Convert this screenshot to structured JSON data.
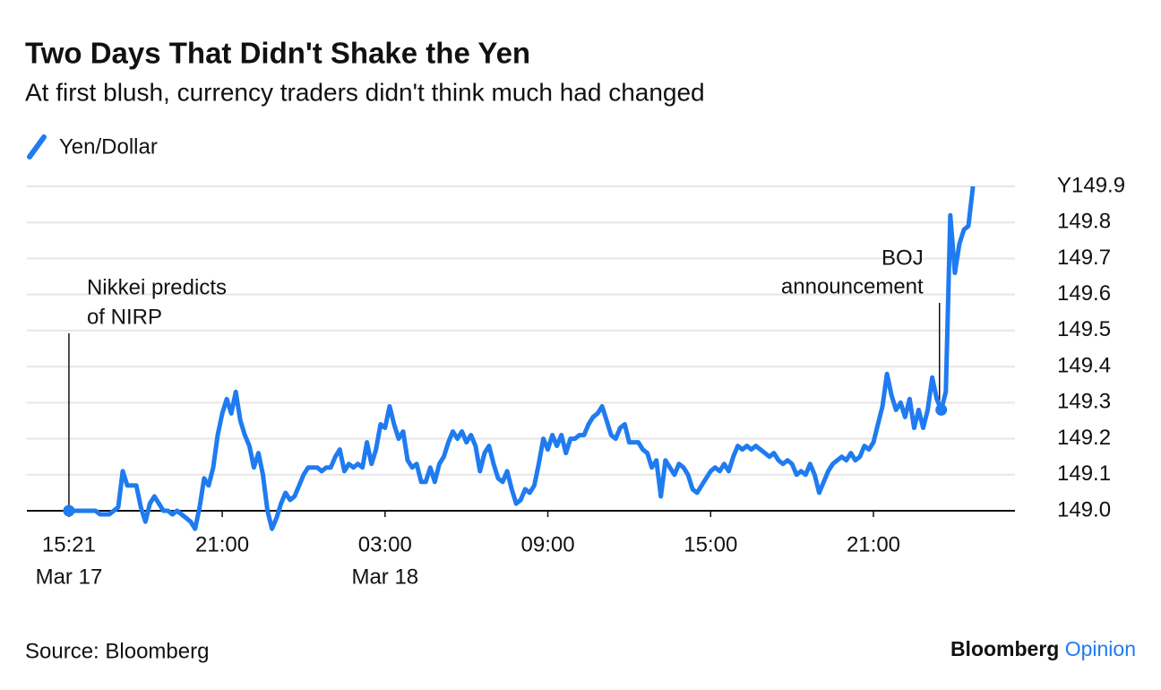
{
  "chart_data": {
    "type": "line",
    "title": "Two Days That Didn't Shake the Yen",
    "subtitle": "At first blush, currency traders didn't think much had changed",
    "source": "Source: Bloomberg",
    "brand": [
      "Bloomberg",
      "Opinion"
    ],
    "x": [
      "15:21",
      "15:30",
      "15:40",
      "15:50",
      "16:00",
      "16:10",
      "16:20",
      "16:30",
      "16:40",
      "16:50",
      "17:00",
      "17:10",
      "17:20",
      "17:30",
      "17:40",
      "17:50",
      "18:00",
      "18:10",
      "18:20",
      "18:30",
      "18:40",
      "18:50",
      "19:00",
      "19:10",
      "19:20",
      "19:30",
      "19:40",
      "19:50",
      "20:00",
      "20:10",
      "20:20",
      "20:30",
      "20:40",
      "20:50",
      "21:00",
      "21:10",
      "21:20",
      "21:30",
      "21:40",
      "21:50",
      "22:00",
      "22:10",
      "22:20",
      "22:30",
      "22:40",
      "22:50",
      "23:00",
      "23:10",
      "23:20",
      "23:30",
      "23:40",
      "23:50",
      "00:00",
      "00:10",
      "00:20",
      "00:30",
      "00:40",
      "00:50",
      "01:00",
      "01:10",
      "01:20",
      "01:30",
      "01:40",
      "01:50",
      "02:00",
      "02:10",
      "02:20",
      "02:30",
      "02:40",
      "02:50",
      "03:00",
      "03:10",
      "03:20",
      "03:30",
      "03:40",
      "03:50",
      "04:00",
      "04:10",
      "04:20",
      "04:30",
      "04:40",
      "04:50",
      "05:00",
      "05:10",
      "05:20",
      "05:30",
      "05:40",
      "05:50",
      "06:00",
      "06:10",
      "06:20",
      "06:30",
      "06:40",
      "06:50",
      "07:00",
      "07:10",
      "07:20",
      "07:30",
      "07:40",
      "07:50",
      "08:00",
      "08:10",
      "08:20",
      "08:30",
      "08:40",
      "08:50",
      "09:00",
      "09:10",
      "09:20",
      "09:30",
      "09:40",
      "09:50",
      "10:00",
      "10:10",
      "10:20",
      "10:30",
      "10:40",
      "10:50",
      "11:00",
      "11:10",
      "11:20",
      "11:30",
      "11:40",
      "11:50",
      "12:00",
      "12:10",
      "12:20",
      "12:30",
      "12:40",
      "12:50",
      "13:00",
      "13:10",
      "13:20",
      "13:30",
      "13:40",
      "13:50",
      "14:00",
      "14:10",
      "14:20",
      "14:30",
      "14:40",
      "14:50",
      "15:00",
      "15:10",
      "15:20",
      "15:30",
      "15:40",
      "15:50",
      "16:00",
      "16:10",
      "16:20",
      "16:30",
      "16:40",
      "16:50",
      "17:00",
      "17:10",
      "17:20",
      "17:30",
      "17:40",
      "17:50",
      "18:00",
      "18:10",
      "18:20",
      "18:30",
      "18:40",
      "18:50",
      "19:00",
      "19:10",
      "19:20",
      "19:30",
      "19:40",
      "19:50",
      "20:00",
      "20:10",
      "20:20",
      "20:30",
      "20:40",
      "20:50",
      "21:00",
      "21:10",
      "21:20",
      "21:30",
      "21:40",
      "21:50",
      "22:00",
      "22:10",
      "22:20",
      "22:30",
      "22:40",
      "22:50",
      "23:00",
      "23:10",
      "23:20",
      "23:30",
      "23:40",
      "23:50",
      "00:00",
      "00:10",
      "00:20",
      "00:30",
      "00:40"
    ],
    "series": [
      {
        "name": "Yen/Dollar",
        "color": "#1f7bf0",
        "values": [
          149,
          149,
          149,
          149,
          149,
          149,
          149,
          148.99,
          148.99,
          148.99,
          149,
          149.01,
          149.11,
          149.07,
          149.07,
          149.07,
          149.01,
          148.97,
          149.02,
          149.04,
          149.02,
          149,
          149,
          148.99,
          149,
          148.99,
          148.98,
          148.97,
          148.95,
          149.01,
          149.09,
          149.07,
          149.12,
          149.21,
          149.27,
          149.31,
          149.27,
          149.33,
          149.25,
          149.21,
          149.18,
          149.12,
          149.16,
          149.1,
          149,
          148.95,
          148.98,
          149.02,
          149.05,
          149.03,
          149.04,
          149.07,
          149.1,
          149.12,
          149.12,
          149.12,
          149.11,
          149.12,
          149.12,
          149.15,
          149.17,
          149.11,
          149.13,
          149.12,
          149.13,
          149.12,
          149.19,
          149.13,
          149.17,
          149.24,
          149.23,
          149.29,
          149.24,
          149.2,
          149.22,
          149.14,
          149.12,
          149.13,
          149.08,
          149.08,
          149.12,
          149.08,
          149.13,
          149.15,
          149.19,
          149.22,
          149.2,
          149.22,
          149.19,
          149.21,
          149.18,
          149.11,
          149.16,
          149.18,
          149.13,
          149.09,
          149.08,
          149.11,
          149.06,
          149.02,
          149.03,
          149.06,
          149.05,
          149.07,
          149.13,
          149.2,
          149.17,
          149.21,
          149.18,
          149.21,
          149.16,
          149.2,
          149.2,
          149.21,
          149.21,
          149.24,
          149.26,
          149.27,
          149.29,
          149.25,
          149.21,
          149.2,
          149.23,
          149.24,
          149.19,
          149.19,
          149.19,
          149.17,
          149.16,
          149.12,
          149.14,
          149.04,
          149.14,
          149.12,
          149.1,
          149.13,
          149.12,
          149.1,
          149.06,
          149.05,
          149.07,
          149.09,
          149.11,
          149.12,
          149.11,
          149.13,
          149.11,
          149.15,
          149.18,
          149.17,
          149.18,
          149.17,
          149.18,
          149.17,
          149.16,
          149.15,
          149.16,
          149.14,
          149.13,
          149.14,
          149.13,
          149.1,
          149.11,
          149.1,
          149.13,
          149.1,
          149.05,
          149.08,
          149.11,
          149.13,
          149.14,
          149.15,
          149.14,
          149.16,
          149.14,
          149.15,
          149.18,
          149.17,
          149.19,
          149.24,
          149.29,
          149.38,
          149.32,
          149.28,
          149.3,
          149.26,
          149.31,
          149.23,
          149.28,
          149.23,
          149.28,
          149.37,
          149.31,
          149.28,
          149.33,
          149.82,
          149.66,
          149.74,
          149.78,
          149.79,
          149.9
        ]
      }
    ],
    "annotations": [
      {
        "text": [
          "Nikkei predicts",
          "of NIRP"
        ],
        "index": 0
      },
      {
        "text": [
          "BOJ",
          "announcement"
        ],
        "index": 193
      }
    ],
    "xlim": [
      "13:48",
      "02:13"
    ],
    "xticks": [
      {
        "value": "15:21",
        "label": "15:21",
        "date": "Mar 17"
      },
      {
        "value": "21:00",
        "label": "21:00"
      },
      {
        "value": "03:00",
        "label": "03:00",
        "date": "Mar 18"
      },
      {
        "value": "09:00",
        "label": "09:00"
      },
      {
        "value": "15:00",
        "label": "15:00"
      },
      {
        "value": "21:00",
        "label": "21:00"
      }
    ],
    "ylim": [
      149.0,
      149.9
    ],
    "yticks": [
      {
        "value": 149.0,
        "label": "149.0"
      },
      149.1,
      149.2,
      149.3,
      149.4,
      149.5,
      149.6,
      149.7,
      149.8,
      {
        "value": 149.9,
        "label": "Y149.9"
      }
    ],
    "grid": true
  }
}
